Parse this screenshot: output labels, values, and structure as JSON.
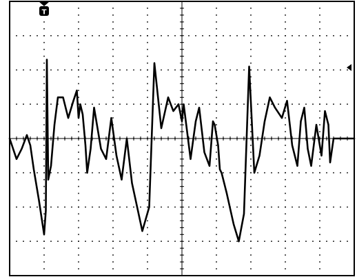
{
  "scope": {
    "trigger_marker": {
      "glyph": "T",
      "icon": "trigger-position-icon"
    },
    "level_marker": {
      "icon": "trigger-level-arrow-icon"
    }
  },
  "chart_data": {
    "type": "line",
    "title": "",
    "xlabel": "",
    "ylabel": "",
    "grid": true,
    "x_divisions": 10,
    "y_divisions": 8,
    "xlim": [
      0,
      10
    ],
    "ylim": [
      -4,
      4
    ],
    "trigger_position_div": 1.0,
    "trigger_level_div": 2.0,
    "series": [
      {
        "x": [
          0.0,
          0.2,
          0.35,
          0.5,
          0.6,
          0.7,
          0.85,
          1.0,
          1.05,
          1.08,
          1.12,
          1.2,
          1.3,
          1.4,
          1.55,
          1.7,
          1.85,
          1.95,
          2.0,
          2.05,
          2.12,
          2.2,
          2.25,
          2.35,
          2.45,
          2.65,
          2.8,
          2.95,
          3.1,
          3.25,
          3.4,
          3.55,
          3.7,
          3.85,
          4.05,
          4.2,
          4.4,
          4.6,
          4.75,
          4.9,
          5.0,
          5.05,
          5.1,
          5.25,
          5.4,
          5.5,
          5.65,
          5.8,
          5.9,
          5.95,
          6.05,
          6.1,
          6.15,
          6.2,
          6.3,
          6.5,
          6.65,
          6.8,
          6.95,
          7.1,
          7.25,
          7.4,
          7.55,
          7.7,
          7.9,
          8.05,
          8.2,
          8.35,
          8.45,
          8.55,
          8.65,
          8.75,
          8.9,
          9.05,
          9.15,
          9.2,
          9.25,
          9.3,
          9.4,
          9.5,
          9.65,
          9.8,
          9.95,
          10.0
        ],
        "values": [
          0.0,
          -0.6,
          -0.3,
          0.1,
          -0.2,
          -0.9,
          -1.8,
          -2.8,
          -2.1,
          2.3,
          -1.2,
          -0.8,
          0.4,
          1.2,
          1.2,
          0.6,
          1.1,
          1.4,
          0.6,
          1.0,
          0.7,
          -0.2,
          -1.0,
          -0.3,
          0.9,
          -0.3,
          -0.6,
          0.6,
          -0.5,
          -1.2,
          0.0,
          -1.3,
          -2.0,
          -2.7,
          -2.0,
          2.2,
          0.3,
          1.2,
          0.8,
          1.0,
          0.5,
          1.0,
          0.6,
          -0.6,
          0.5,
          0.9,
          -0.4,
          -0.8,
          0.5,
          0.4,
          -0.2,
          -0.9,
          -1.0,
          -1.2,
          -1.6,
          -2.5,
          -3.0,
          -2.2,
          2.1,
          -1.0,
          -0.5,
          0.5,
          1.2,
          0.9,
          0.6,
          1.1,
          -0.2,
          -0.8,
          0.5,
          0.9,
          -0.3,
          -0.8,
          0.4,
          -0.5,
          0.8,
          0.6,
          0.4,
          -0.7,
          0.0,
          0.0,
          0.0,
          0.0,
          0.0,
          0.0
        ]
      }
    ]
  }
}
